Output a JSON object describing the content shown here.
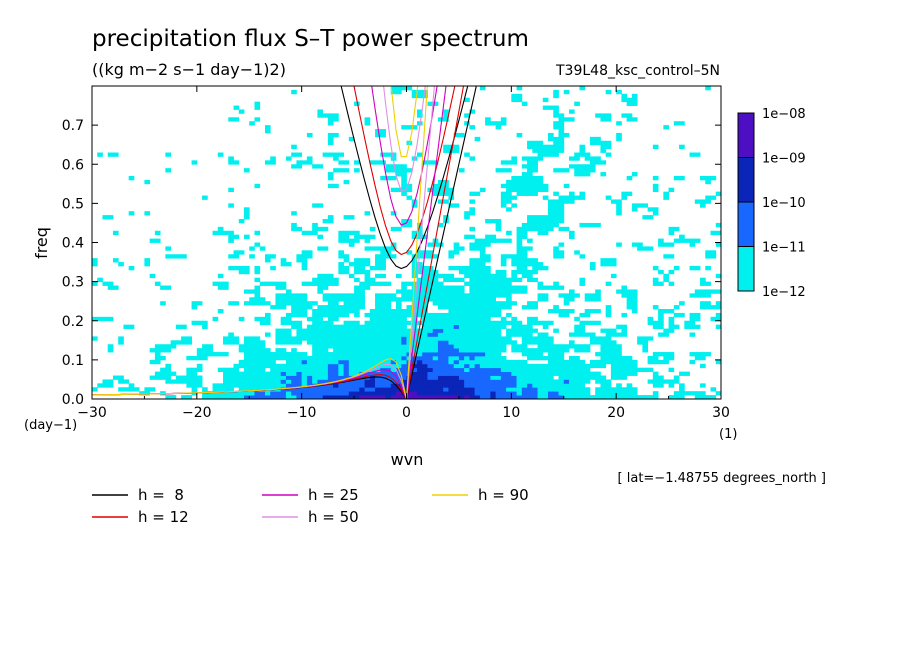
{
  "chart_data": {
    "type": "heatmap",
    "title": "precipitation flux S–T power spectrum",
    "units": "((kg m−2 s−1 day−1)2)",
    "experiment": "T39L48_ksc_control–5N",
    "xlabel": "wvn",
    "ylabel": "freq",
    "x_unit_label": "(1)",
    "y_unit_label": "(day−1)",
    "xlim": [
      -30,
      30
    ],
    "ylim": [
      0,
      0.8
    ],
    "x_ticks": [
      -30,
      -20,
      -10,
      0,
      10,
      20,
      30
    ],
    "x_tick_labels": [
      "−30",
      "−20",
      "−10",
      "0",
      "10",
      "20",
      "30"
    ],
    "y_ticks": [
      0.0,
      0.1,
      0.2,
      0.3,
      0.4,
      0.5,
      0.6,
      0.7
    ],
    "y_tick_labels": [
      "0.0",
      "0.1",
      "0.2",
      "0.3",
      "0.4",
      "0.5",
      "0.6",
      "0.7"
    ],
    "colorbar": {
      "levels": [
        "1e−08",
        "1e−09",
        "1e−10",
        "1e−11",
        "1e−12"
      ],
      "colors": [
        "#4e0fc4",
        "#0a25b8",
        "#1868ff",
        "#00f0f0"
      ]
    },
    "dispersion_curves": [
      {
        "h": 8,
        "color": "#000000"
      },
      {
        "h": 12,
        "color": "#e00000"
      },
      {
        "h": 25,
        "color": "#d000c0"
      },
      {
        "h": 50,
        "color": "#e090e0"
      },
      {
        "h": 90,
        "color": "#f0d000"
      }
    ],
    "legend_labels": [
      "h =  8",
      "h = 12",
      "h = 25",
      "h = 50",
      "h = 90"
    ],
    "annotation": "[ lat=−1.48755 degrees_north ]"
  }
}
